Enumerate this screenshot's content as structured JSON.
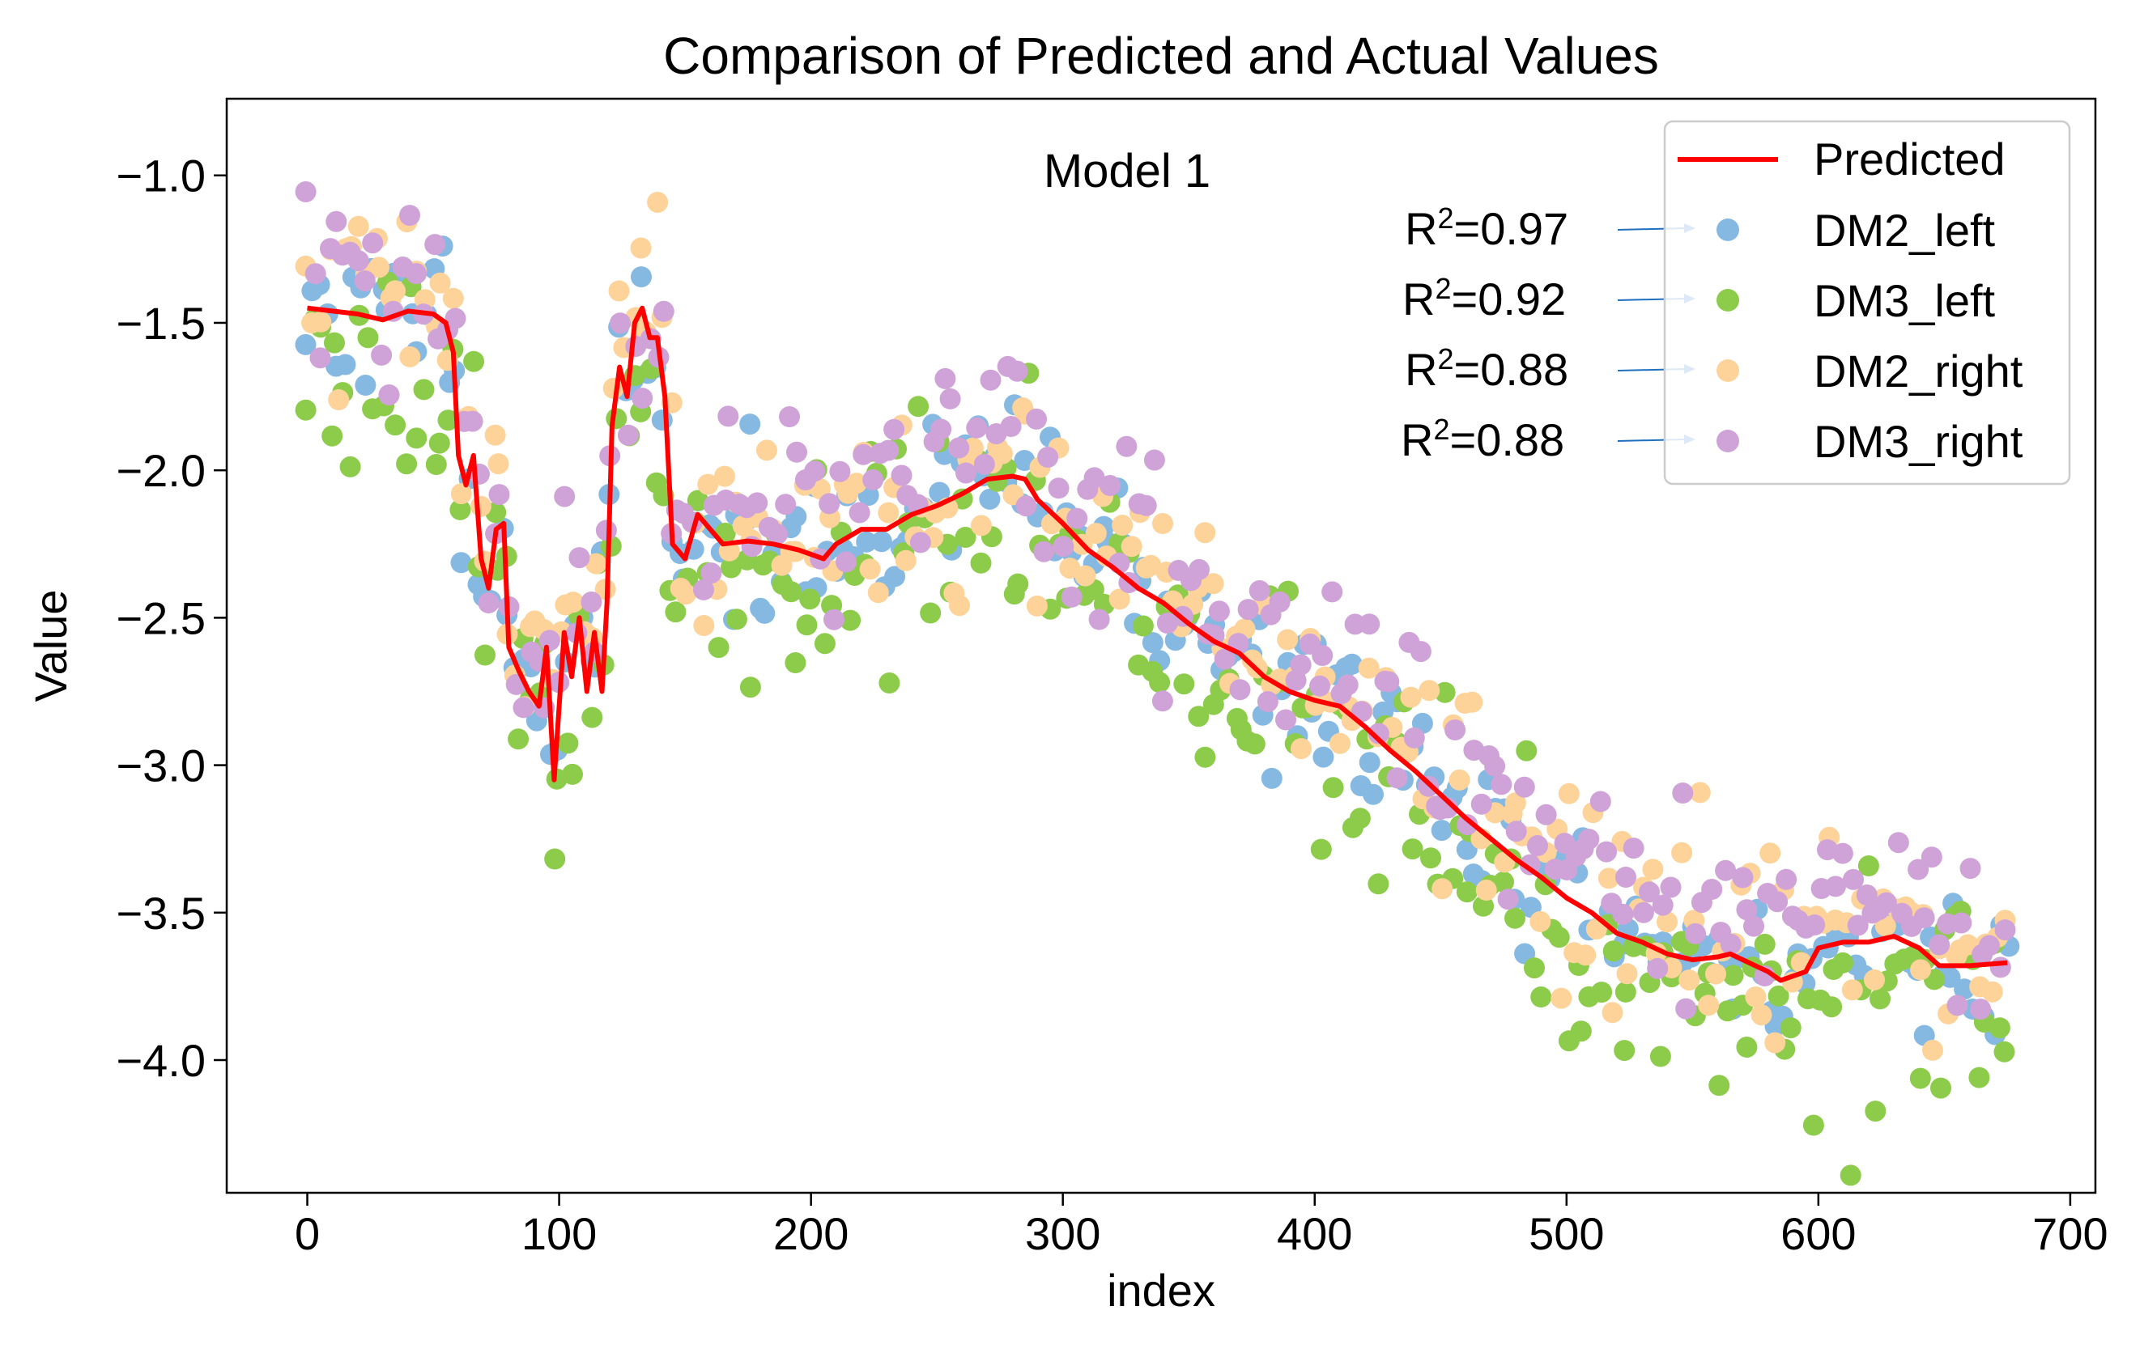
{
  "chart_data": {
    "type": "scatter",
    "title": "Comparison of Predicted and Actual Values",
    "annotation": "Model 1",
    "xlabel": "index",
    "ylabel": "Value",
    "xlim": [
      -32,
      710
    ],
    "ylim": [
      -4.45,
      -0.74
    ],
    "xticks": [
      0,
      100,
      200,
      300,
      400,
      500,
      600,
      700
    ],
    "xtick_labels": [
      "0",
      "100",
      "200",
      "300",
      "400",
      "500",
      "600",
      "700"
    ],
    "yticks": [
      -1.0,
      -1.5,
      -2.0,
      -2.5,
      -3.0,
      -3.5,
      -4.0
    ],
    "ytick_labels": [
      "−1.0",
      "−1.5",
      "−2.0",
      "−2.5",
      "−3.0",
      "−3.5",
      "−4.0"
    ],
    "grid": false,
    "legend_position": "top-right",
    "legend": {
      "predicted": {
        "label": "Predicted",
        "color": "#ff0000"
      },
      "series_order": [
        "DM2_left",
        "DM3_left",
        "DM2_right",
        "DM3_right"
      ]
    },
    "r2_labels": [
      {
        "prefix": "R",
        "sup": "2",
        "value": "=0.97"
      },
      {
        "prefix": "R",
        "sup": "2",
        "value": "=0.92"
      },
      {
        "prefix": "R",
        "sup": "2",
        "value": "=0.88"
      },
      {
        "prefix": "R",
        "sup": "2",
        "value": "=0.88"
      }
    ],
    "arrow_color": "#1f6fbf",
    "predicted": {
      "name": "Predicted",
      "color": "#ff0000",
      "keypoints": [
        [
          0,
          -1.45
        ],
        [
          10,
          -1.46
        ],
        [
          20,
          -1.47
        ],
        [
          30,
          -1.49
        ],
        [
          40,
          -1.46
        ],
        [
          50,
          -1.47
        ],
        [
          55,
          -1.5
        ],
        [
          58,
          -1.6
        ],
        [
          60,
          -1.95
        ],
        [
          63,
          -2.05
        ],
        [
          66,
          -1.95
        ],
        [
          69,
          -2.3
        ],
        [
          72,
          -2.4
        ],
        [
          75,
          -2.2
        ],
        [
          78,
          -2.18
        ],
        [
          80,
          -2.6
        ],
        [
          84,
          -2.68
        ],
        [
          88,
          -2.75
        ],
        [
          92,
          -2.8
        ],
        [
          95,
          -2.6
        ],
        [
          98,
          -3.05
        ],
        [
          100,
          -2.8
        ],
        [
          102,
          -2.55
        ],
        [
          105,
          -2.7
        ],
        [
          108,
          -2.5
        ],
        [
          111,
          -2.75
        ],
        [
          114,
          -2.55
        ],
        [
          117,
          -2.75
        ],
        [
          119,
          -2.45
        ],
        [
          121,
          -1.85
        ],
        [
          124,
          -1.65
        ],
        [
          127,
          -1.75
        ],
        [
          130,
          -1.5
        ],
        [
          133,
          -1.45
        ],
        [
          136,
          -1.55
        ],
        [
          139,
          -1.55
        ],
        [
          142,
          -1.75
        ],
        [
          145,
          -2.25
        ],
        [
          150,
          -2.3
        ],
        [
          155,
          -2.15
        ],
        [
          160,
          -2.2
        ],
        [
          165,
          -2.25
        ],
        [
          175,
          -2.24
        ],
        [
          185,
          -2.25
        ],
        [
          195,
          -2.27
        ],
        [
          205,
          -2.3
        ],
        [
          210,
          -2.25
        ],
        [
          220,
          -2.2
        ],
        [
          230,
          -2.2
        ],
        [
          240,
          -2.15
        ],
        [
          250,
          -2.12
        ],
        [
          260,
          -2.08
        ],
        [
          270,
          -2.03
        ],
        [
          280,
          -2.02
        ],
        [
          285,
          -2.03
        ],
        [
          290,
          -2.1
        ],
        [
          300,
          -2.18
        ],
        [
          310,
          -2.27
        ],
        [
          320,
          -2.33
        ],
        [
          330,
          -2.4
        ],
        [
          340,
          -2.45
        ],
        [
          350,
          -2.52
        ],
        [
          360,
          -2.58
        ],
        [
          370,
          -2.62
        ],
        [
          380,
          -2.7
        ],
        [
          390,
          -2.75
        ],
        [
          400,
          -2.78
        ],
        [
          410,
          -2.8
        ],
        [
          420,
          -2.87
        ],
        [
          430,
          -2.95
        ],
        [
          440,
          -3.02
        ],
        [
          450,
          -3.1
        ],
        [
          460,
          -3.18
        ],
        [
          470,
          -3.25
        ],
        [
          480,
          -3.32
        ],
        [
          490,
          -3.38
        ],
        [
          500,
          -3.45
        ],
        [
          510,
          -3.5
        ],
        [
          520,
          -3.57
        ],
        [
          530,
          -3.6
        ],
        [
          540,
          -3.64
        ],
        [
          550,
          -3.66
        ],
        [
          560,
          -3.65
        ],
        [
          565,
          -3.64
        ],
        [
          570,
          -3.66
        ],
        [
          580,
          -3.7
        ],
        [
          585,
          -3.73
        ],
        [
          595,
          -3.7
        ],
        [
          600,
          -3.62
        ],
        [
          610,
          -3.6
        ],
        [
          620,
          -3.6
        ],
        [
          630,
          -3.58
        ],
        [
          640,
          -3.62
        ],
        [
          648,
          -3.68
        ],
        [
          660,
          -3.68
        ],
        [
          675,
          -3.67
        ]
      ]
    },
    "series": [
      {
        "name": "DM2_left",
        "color": "#85b9e2",
        "r2": "0.97",
        "offset": 0.0,
        "noise": 0.13,
        "seed": 11,
        "n": 230
      },
      {
        "name": "DM3_left",
        "color": "#8ccc4a",
        "r2": "0.92",
        "offset": -0.1,
        "noise": 0.19,
        "seed": 23,
        "n": 230
      },
      {
        "name": "DM2_right",
        "color": "#fdd39a",
        "r2": "0.88",
        "offset": 0.05,
        "noise": 0.17,
        "seed": 37,
        "n": 230
      },
      {
        "name": "DM3_right",
        "color": "#cfa2d8",
        "r2": "0.88",
        "offset": 0.12,
        "noise": 0.16,
        "seed": 53,
        "n": 230
      }
    ],
    "x_range": [
      0,
      675
    ]
  }
}
